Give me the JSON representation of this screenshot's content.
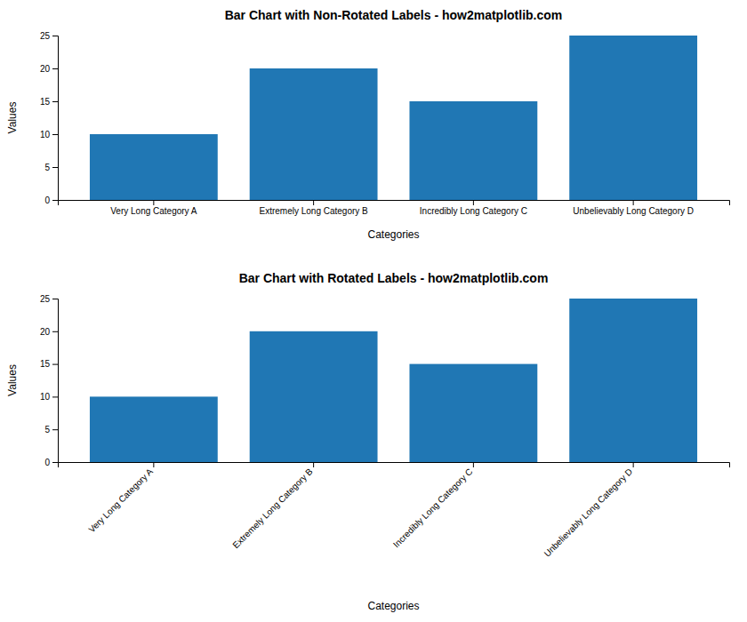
{
  "chart_data": [
    {
      "type": "bar",
      "title": "Bar Chart with Non-Rotated Labels - how2matplotlib.com",
      "xlabel": "Categories",
      "ylabel": "Values",
      "categories": [
        "Very Long Category A",
        "Extremely Long Category B",
        "Incredibly Long Category C",
        "Unbelievably Long Category D"
      ],
      "values": [
        10,
        20,
        15,
        25
      ],
      "color": "#2077b4",
      "ylim": [
        0,
        25
      ],
      "yticks": [
        0,
        5,
        10,
        15,
        20,
        25
      ],
      "grid": false
    },
    {
      "type": "bar",
      "title": "Bar Chart with Rotated Labels - how2matplotlib.com",
      "xlabel": "Categories",
      "ylabel": "Values",
      "categories": [
        "Very Long Category A",
        "Extremely Long Category B",
        "Incredibly Long Category C",
        "Unbelievably Long Category D"
      ],
      "values": [
        10,
        20,
        15,
        25
      ],
      "color": "#2077b4",
      "ylim": [
        0,
        25
      ],
      "yticks": [
        0,
        5,
        10,
        15,
        20,
        25
      ],
      "grid": false
    }
  ]
}
